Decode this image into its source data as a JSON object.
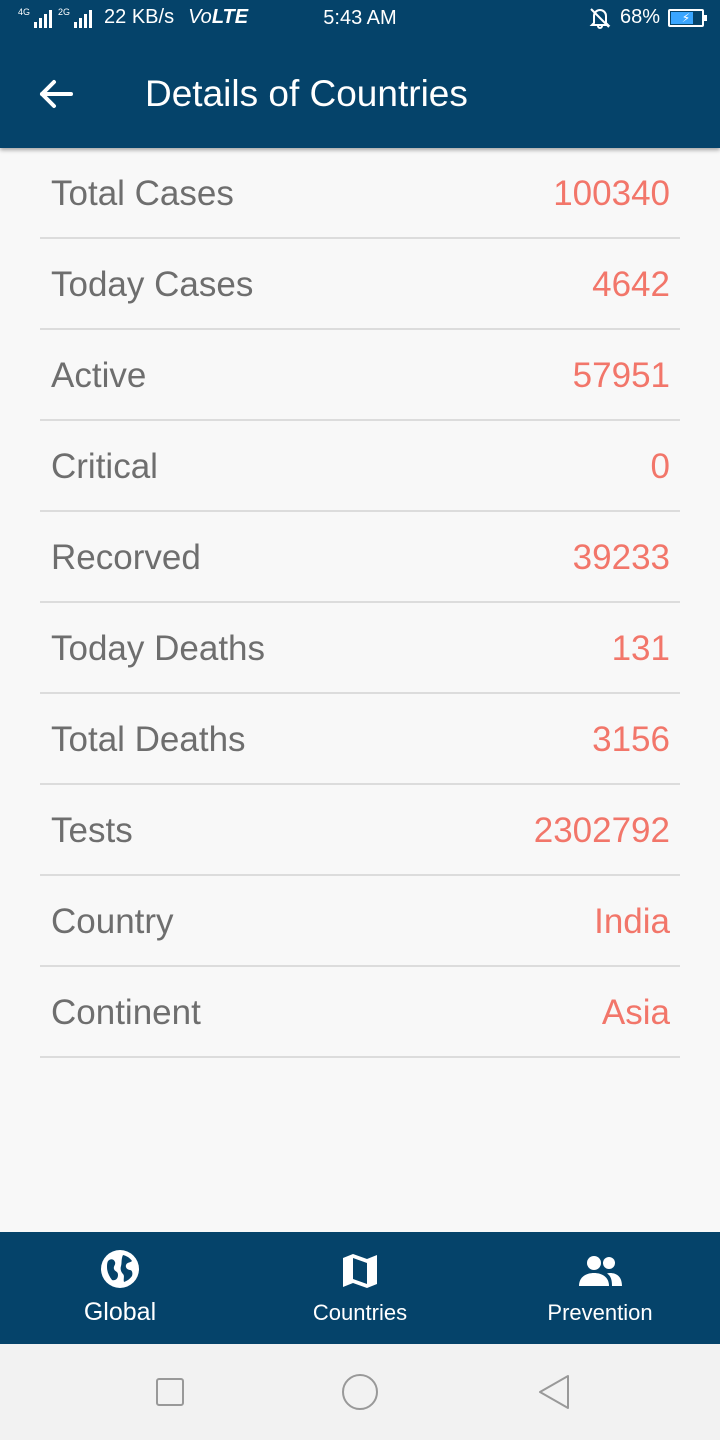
{
  "status_bar": {
    "network_left": "4G",
    "network_right": "2G",
    "speed": "22 KB/s",
    "volte_prefix": "Vo",
    "volte_suffix": "LTE",
    "time": "5:43 AM",
    "battery": "68%"
  },
  "header": {
    "title": "Details of Countries",
    "back_icon": "arrow-left-icon"
  },
  "details": [
    {
      "label": "Total Cases",
      "value": "100340"
    },
    {
      "label": "Today Cases",
      "value": "4642"
    },
    {
      "label": "Active",
      "value": "57951"
    },
    {
      "label": "Critical",
      "value": "0"
    },
    {
      "label": "Recorved",
      "value": "39233"
    },
    {
      "label": "Today Deaths",
      "value": "131"
    },
    {
      "label": "Total Deaths",
      "value": "3156"
    },
    {
      "label": "Tests",
      "value": "2302792"
    },
    {
      "label": "Country",
      "value": "India"
    },
    {
      "label": "Continent",
      "value": "Asia"
    }
  ],
  "bottom_nav": {
    "items": [
      {
        "label": "Global",
        "icon": "globe-icon",
        "active": true
      },
      {
        "label": "Countries",
        "icon": "map-icon",
        "active": false
      },
      {
        "label": "Prevention",
        "icon": "people-icon",
        "active": false
      }
    ]
  },
  "system_nav": {
    "icons": [
      "recent-apps-icon",
      "home-icon",
      "back-triangle-icon"
    ]
  },
  "colors": {
    "primary": "#05436a",
    "value_text": "#f2766a",
    "label_text": "#6e6e6e",
    "background": "#f8f8f8",
    "divider": "#dcdcdc"
  }
}
